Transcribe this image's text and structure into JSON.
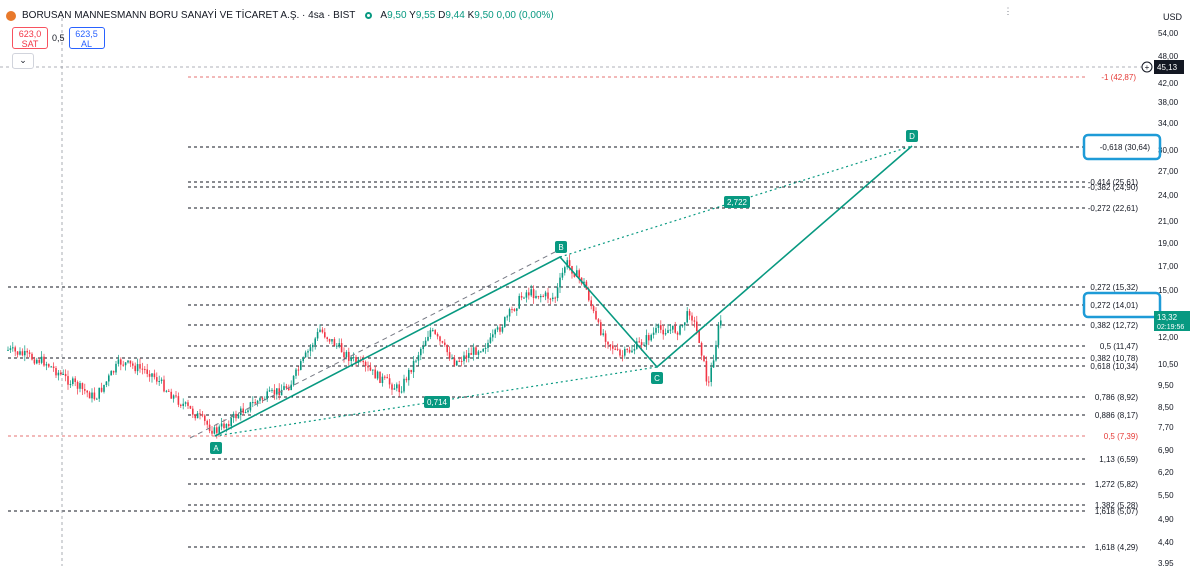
{
  "symbol_bar": {
    "title": "BORUSAN MANNESMANN BORU SANAYİ VE TİCARET A.Ş. · 4sa · BIST",
    "ohlc": [
      {
        "k": "A",
        "v": "9,50"
      },
      {
        "k": "Y",
        "v": "9,55"
      },
      {
        "k": "D",
        "v": "9,44"
      },
      {
        "k": "K",
        "v": "9,50"
      },
      {
        "k": "",
        "v": "0,00 (0,00%)"
      }
    ]
  },
  "trade": {
    "sell_price": "623,0",
    "sell_label": "SAT",
    "spread": "0,5",
    "buy_price": "623,5",
    "buy_label": "AL",
    "collapse_icon": "chevron-down-icon"
  },
  "price_axis": {
    "currency": "USD",
    "ticks": [
      "54,00",
      "48,00",
      "42,00",
      "38,00",
      "34,00",
      "30,00",
      "27,00",
      "24,00",
      "21,00",
      "19,00",
      "17,00",
      "15,00",
      "13,50",
      "12,00",
      "10,50",
      "9,50",
      "8,50",
      "7,70",
      "6,90",
      "6,20",
      "5,50",
      "4,90",
      "4,40",
      "3,95"
    ],
    "last_price": "13,32",
    "countdown": "02:19:56",
    "crosshair_price": "45,13"
  },
  "fib_levels": [
    {
      "label": "-1 (42,87)",
      "red": true
    },
    {
      "label": "-0,618 (30,64)",
      "highlight": true
    },
    {
      "label": "-0,414 (25,61)"
    },
    {
      "label": "-0,382 (24,90)"
    },
    {
      "label": "-0,272 (22,61)"
    },
    {
      "label": "0,272 (15,32)"
    },
    {
      "label": "0,272 (14,01)",
      "highlight": true
    },
    {
      "label": "0,382 (12,72)"
    },
    {
      "label": "0,5 (11,47)"
    },
    {
      "label": "0,382 (10,78)"
    },
    {
      "label": "0,618 (10,34)"
    },
    {
      "label": "0,786 (8,92)"
    },
    {
      "label": "0,886 (8,17)"
    },
    {
      "label": "0,5 (7,39)",
      "red": true
    },
    {
      "label": "1,13 (6,59)"
    },
    {
      "label": "1,272 (5,82)"
    },
    {
      "label": "1,382 (5,28)"
    },
    {
      "label": "1,618 (5,07)"
    },
    {
      "label": "1,618 (4,29)"
    }
  ],
  "pattern": {
    "points": [
      "A",
      "B",
      "C",
      "D"
    ],
    "ratio_ac": "0,714",
    "ratio_bd": "2,722",
    "color": "#089981"
  },
  "chart_data": {
    "type": "candlestick",
    "y_scale": "log",
    "ylim": [
      3.95,
      54.0
    ],
    "pattern_prices": {
      "A": 7.39,
      "B": 17.8,
      "C": 10.1,
      "D": 30.64
    },
    "last_price": 13.32
  },
  "colors": {
    "up": "#089981",
    "down": "#f23645",
    "accent": "#2962ff",
    "highlight_box": "#1e9bd7"
  }
}
